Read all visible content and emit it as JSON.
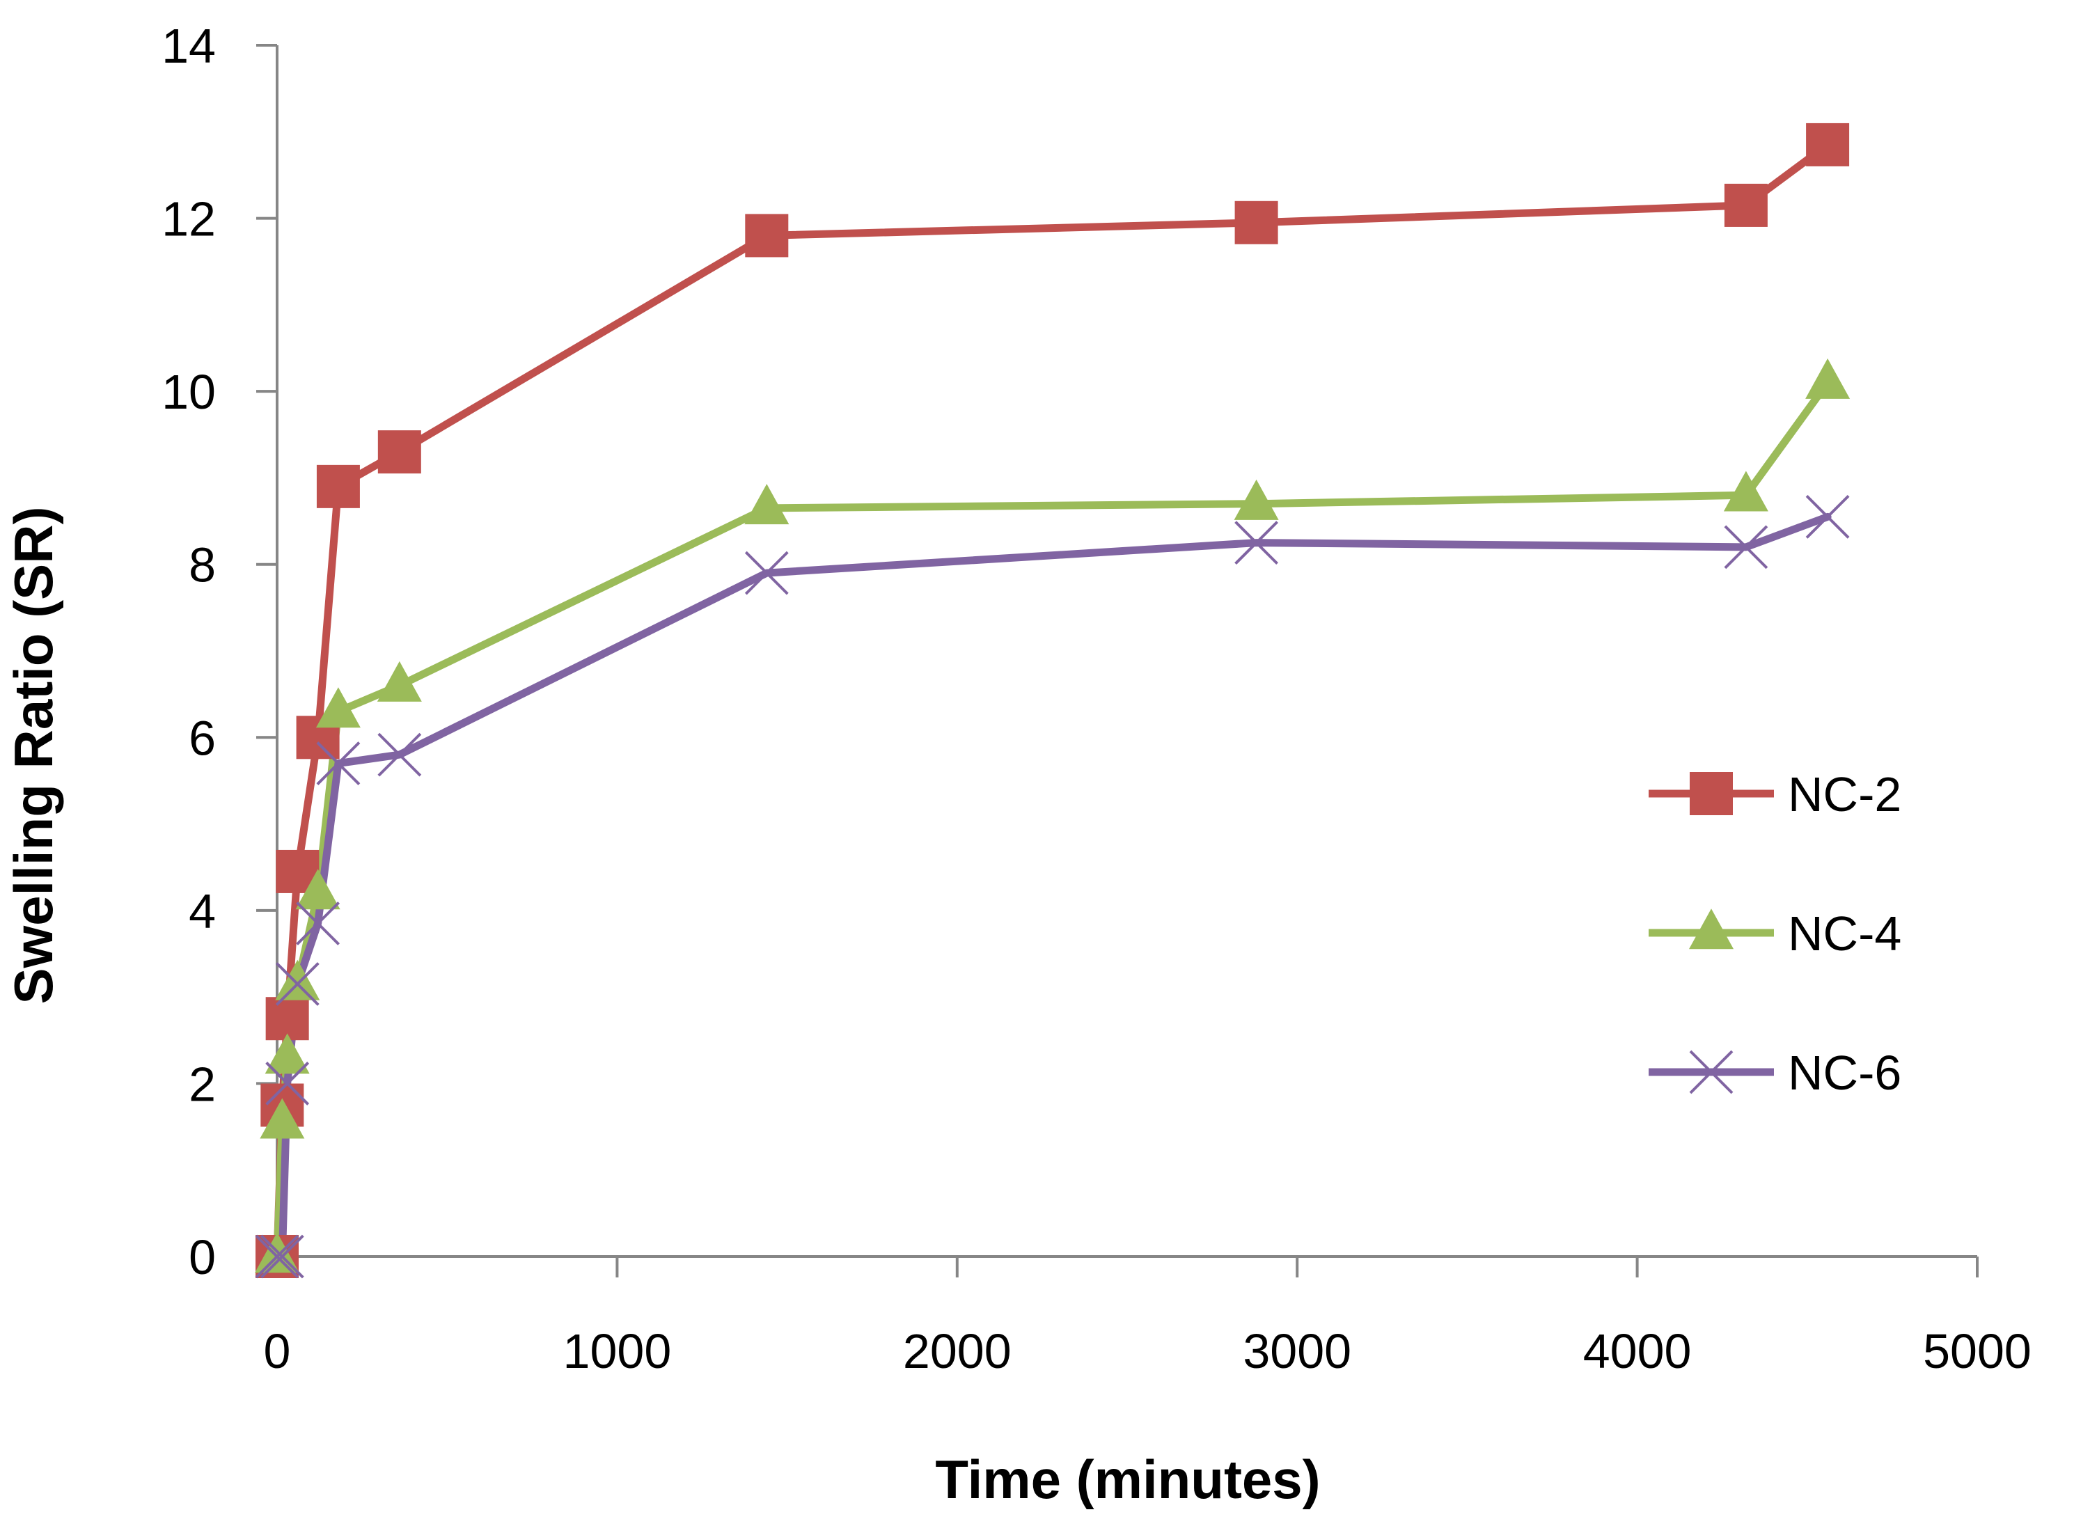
{
  "chart_data": {
    "type": "line",
    "title": "",
    "xlabel": "Time (minutes)",
    "ylabel": "Swelling Ratio (SR)",
    "xlim": [
      0,
      5000
    ],
    "ylim": [
      0,
      14
    ],
    "x_ticks": [
      0,
      1000,
      2000,
      3000,
      4000,
      5000
    ],
    "x_tick_labels": [
      "0",
      "1000",
      "2000",
      "3000",
      "4000",
      "5000"
    ],
    "y_ticks": [
      0,
      2,
      4,
      6,
      8,
      10,
      12,
      14
    ],
    "y_tick_labels": [
      "0",
      "2",
      "4",
      "6",
      "8",
      "10",
      "12",
      "14"
    ],
    "grid": false,
    "legend_position": "right",
    "series": [
      {
        "name": "NC-2",
        "color": "#C0504D",
        "marker": "square",
        "x": [
          0,
          15,
          30,
          60,
          120,
          180,
          360,
          1440,
          2880,
          4320,
          4560
        ],
        "y": [
          0,
          1.75,
          2.75,
          4.45,
          6.0,
          8.9,
          9.3,
          11.8,
          11.95,
          12.15,
          12.85
        ]
      },
      {
        "name": "NC-4",
        "color": "#9BBB59",
        "marker": "triangle",
        "x": [
          0,
          15,
          30,
          60,
          120,
          180,
          360,
          1440,
          2880,
          4320,
          4560
        ],
        "y": [
          0,
          1.55,
          2.3,
          3.15,
          4.2,
          6.3,
          6.6,
          8.65,
          8.7,
          8.8,
          10.1
        ]
      },
      {
        "name": "NC-6",
        "color": "#8064A2",
        "marker": "x",
        "x": [
          0,
          15,
          30,
          60,
          120,
          180,
          360,
          1440,
          2880,
          4320,
          4560
        ],
        "y": [
          0,
          0,
          2.0,
          3.15,
          3.85,
          5.7,
          5.8,
          7.9,
          8.25,
          8.2,
          8.55
        ]
      }
    ]
  }
}
